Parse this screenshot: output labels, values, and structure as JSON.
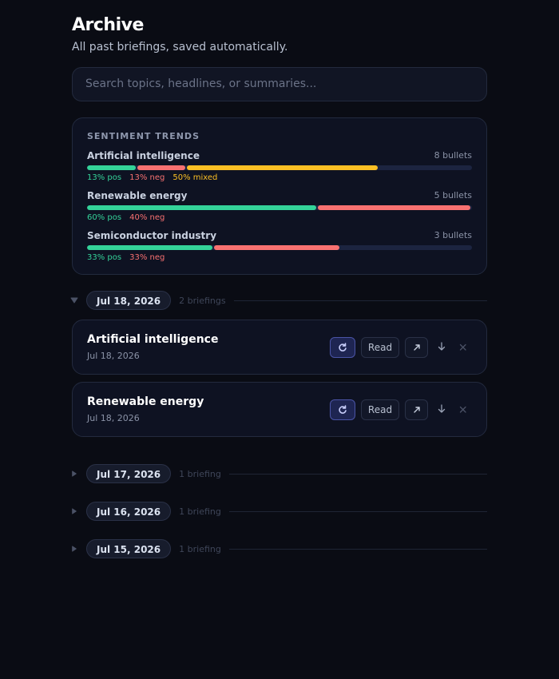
{
  "header": {
    "title": "Archive",
    "subtitle": "All past briefings, saved automatically."
  },
  "search": {
    "placeholder": "Search topics, headlines, or summaries..."
  },
  "sentiment": {
    "title": "SENTIMENT TRENDS",
    "topics": [
      {
        "name": "Artificial intelligence",
        "count": "8 bullets",
        "segments": [
          {
            "label": "13% pos",
            "value": 13,
            "color": "#34d399"
          },
          {
            "label": "13% neg",
            "value": 13,
            "color": "#f87171"
          },
          {
            "label": "50% mixed",
            "value": 50,
            "color": "#fbbf24"
          }
        ]
      },
      {
        "name": "Renewable energy",
        "count": "5 bullets",
        "segments": [
          {
            "label": "60% pos",
            "value": 60,
            "color": "#34d399"
          },
          {
            "label": "40% neg",
            "value": 40,
            "color": "#f87171"
          }
        ]
      },
      {
        "name": "Semiconductor industry",
        "count": "3 bullets",
        "segments": [
          {
            "label": "33% pos",
            "value": 33,
            "color": "#34d399"
          },
          {
            "label": "33% neg",
            "value": 33,
            "color": "#f87171"
          }
        ]
      }
    ]
  },
  "groups": [
    {
      "date": "Jul 18, 2026",
      "count": "2 briefings",
      "expanded": true,
      "items": [
        {
          "title": "Artificial intelligence",
          "date": "Jul 18, 2026",
          "read": "Read"
        },
        {
          "title": "Renewable energy",
          "date": "Jul 18, 2026",
          "read": "Read"
        }
      ]
    },
    {
      "date": "Jul 17, 2026",
      "count": "1 briefing",
      "expanded": false
    },
    {
      "date": "Jul 16, 2026",
      "count": "1 briefing",
      "expanded": false
    },
    {
      "date": "Jul 15, 2026",
      "count": "1 briefing",
      "expanded": false
    }
  ]
}
